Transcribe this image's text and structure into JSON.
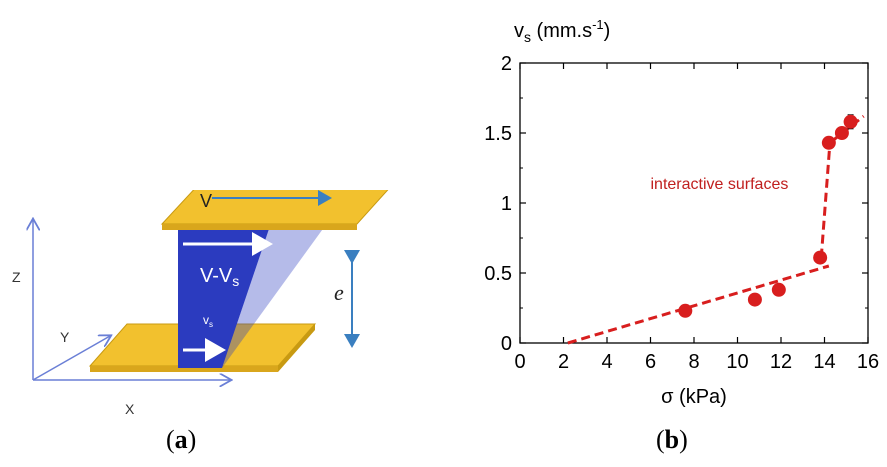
{
  "panel_a": {
    "labels": {
      "v_top": "V",
      "v_minus_vs": "V-V",
      "vs_subscript": "s",
      "vs_small": "v",
      "vs_small_sub": "s",
      "thickness": "e",
      "axis_z": "Z",
      "axis_y": "Y",
      "axis_x": "X"
    },
    "colors": {
      "plate": "#f2c12e",
      "plate_edge": "#c89a12",
      "material": "#2b3bbf",
      "arrow_blue": "#3a7fc0",
      "axis": "#6a7fd6"
    }
  },
  "captions": {
    "a_open": "(",
    "a_letter": "a",
    "a_close": ")",
    "b_open": "(",
    "b_letter": "b",
    "b_close": ")"
  },
  "chart_data": {
    "type": "scatter",
    "ylabel_main": "v",
    "ylabel_sub": "s",
    "ylabel_unit": " (mm.s",
    "ylabel_exp": "-1",
    "ylabel_close": ")",
    "xlabel": "σ (kPa)",
    "xlim": [
      0,
      16
    ],
    "ylim": [
      0,
      2
    ],
    "xticks": [
      0,
      2,
      4,
      6,
      8,
      10,
      12,
      14,
      16
    ],
    "yticks": [
      0,
      0.5,
      1,
      1.5,
      2
    ],
    "ytick_labels": [
      "0",
      "0.5",
      "1",
      "1.5",
      "2"
    ],
    "annotation": "interactive surfaces",
    "marker_color": "#d81e1e",
    "series": [
      {
        "points": [
          {
            "x": 7.6,
            "y": 0.23,
            "err": 0
          },
          {
            "x": 10.8,
            "y": 0.31,
            "err": 0
          },
          {
            "x": 11.9,
            "y": 0.38,
            "err": 0
          },
          {
            "x": 13.8,
            "y": 0.61,
            "err": 0
          },
          {
            "x": 14.2,
            "y": 1.43,
            "err": 0.04
          },
          {
            "x": 14.8,
            "y": 1.5,
            "err": 0.04
          },
          {
            "x": 15.2,
            "y": 1.58,
            "err": 0.05
          }
        ]
      }
    ],
    "fit_lines": [
      {
        "x": [
          2.2,
          14.2
        ],
        "y": [
          0.0,
          0.55
        ]
      },
      {
        "x": [
          13.85,
          14.25
        ],
        "y": [
          0.61,
          1.43
        ]
      },
      {
        "x": [
          14.25,
          15.8
        ],
        "y": [
          1.43,
          1.62
        ]
      }
    ]
  }
}
